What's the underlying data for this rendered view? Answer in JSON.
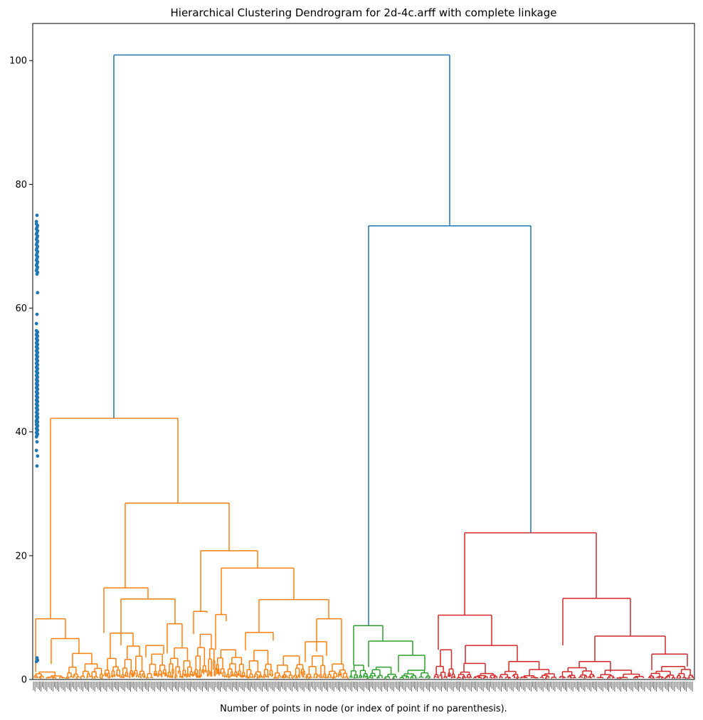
{
  "chart_data": {
    "type": "dendrogram",
    "title": "Hierarchical Clustering Dendrogram for 2d-4c.arff with complete linkage",
    "xlabel": "Number of points in node (or index of point if no parenthesis).",
    "ylabel": "",
    "ylim": [
      0,
      106
    ],
    "yticks": [
      0,
      20,
      40,
      60,
      80,
      100
    ],
    "grid": false,
    "colors": {
      "above_threshold": "#1f77b4",
      "cluster_1": "#ff7f0e",
      "cluster_2": "#2ca02c",
      "cluster_3": "#d62728",
      "scatter": "#1f77b4"
    },
    "clusters": [
      {
        "name": "cluster_1",
        "color": "#ff7f0e",
        "merge_height": 42.2,
        "sub_merges": [
          28.5,
          20.8,
          18.0,
          14.8,
          13.0,
          12.9,
          9.8,
          9.8,
          7.5,
          7.6,
          6.6,
          6.1
        ]
      },
      {
        "name": "cluster_2",
        "color": "#2ca02c",
        "merge_height": 8.7,
        "sub_merges": [
          6.2,
          3.9,
          2.5,
          1.5
        ]
      },
      {
        "name": "cluster_3",
        "color": "#d62728",
        "merge_height": 23.7,
        "sub_merges": [
          13.1,
          10.4,
          7.0,
          5.5,
          4.1,
          2.9,
          2.6
        ]
      }
    ],
    "top_links": [
      {
        "height": 73.3,
        "joins": [
          "cluster_2",
          "cluster_3"
        ]
      },
      {
        "height": 100.9,
        "joins": [
          "cluster_1",
          "cluster_2+cluster_3"
        ]
      }
    ],
    "scatter_y_range": [
      34.5,
      75.0
    ]
  }
}
